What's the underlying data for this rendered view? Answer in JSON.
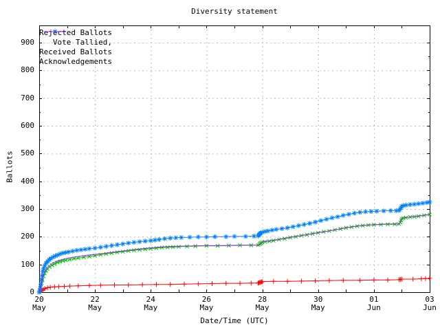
{
  "title": "Diversity statement",
  "axes": {
    "ylabel": "Ballots",
    "xlabel": "Date/Time (UTC)",
    "yticks": [
      0,
      100,
      200,
      300,
      400,
      500,
      600,
      700,
      800,
      900
    ],
    "xticks": [
      {
        "day": 0,
        "line1": "20",
        "line2": "May"
      },
      {
        "day": 2,
        "line1": "22",
        "line2": "May"
      },
      {
        "day": 4,
        "line1": "24",
        "line2": "May"
      },
      {
        "day": 6,
        "line1": "26",
        "line2": "May"
      },
      {
        "day": 8,
        "line1": "28",
        "line2": "May"
      },
      {
        "day": 10,
        "line1": "30",
        "line2": "May"
      },
      {
        "day": 12,
        "line1": "01",
        "line2": "Jun"
      },
      {
        "day": 14,
        "line1": "03",
        "line2": "Jun"
      }
    ],
    "minor_x_days": [
      1,
      3,
      5,
      7,
      9,
      11,
      13
    ],
    "minor_y_step": 50
  },
  "colors": {
    "rejected": "#ff0000",
    "tallied": "#00c000",
    "received": "#0080ff",
    "ack": "#a020f0",
    "grid": "#b8b8b8",
    "border": "#000000",
    "background": "#ffffff"
  },
  "legend": [
    {
      "label": "Rejected Ballots",
      "series": "rejected",
      "marker": "plus"
    },
    {
      "label": "Vote Tallied,",
      "series": "tallied",
      "marker": "cross"
    },
    {
      "label": "Received Ballots",
      "series": "received",
      "marker": "star"
    },
    {
      "label": "Acknowledgements",
      "series": "ack",
      "marker": "none"
    }
  ],
  "chart_data": {
    "type": "line",
    "title": "Diversity statement",
    "xlabel": "Date/Time (UTC)",
    "ylabel": "Ballots",
    "x_axis": {
      "units": "days after 20 May 00:00 UTC",
      "range": [
        0,
        14
      ],
      "tick_labels": [
        "20 May",
        "22 May",
        "24 May",
        "26 May",
        "28 May",
        "30 May",
        "01 Jun",
        "03 Jun"
      ]
    },
    "ylim": [
      0,
      962
    ],
    "ytick_max": 900,
    "grid": "dashed",
    "legend_position": "top-left",
    "series": [
      {
        "name": "Rejected Ballots",
        "color_key": "rejected",
        "marker": "plus",
        "points": [
          [
            0,
            0
          ],
          [
            0.05,
            3
          ],
          [
            0.1,
            7
          ],
          [
            0.15,
            10
          ],
          [
            0.2,
            13
          ],
          [
            0.3,
            16
          ],
          [
            0.4,
            18
          ],
          [
            0.55,
            19
          ],
          [
            0.7,
            20
          ],
          [
            0.9,
            21
          ],
          [
            1.1,
            22
          ],
          [
            1.4,
            23
          ],
          [
            1.8,
            24
          ],
          [
            2.2,
            25
          ],
          [
            2.7,
            26
          ],
          [
            3.2,
            26
          ],
          [
            3.7,
            27
          ],
          [
            4.2,
            28
          ],
          [
            4.7,
            28
          ],
          [
            5.2,
            29
          ],
          [
            5.7,
            30
          ],
          [
            6.2,
            31
          ],
          [
            6.7,
            32
          ],
          [
            7.2,
            32
          ],
          [
            7.6,
            33
          ],
          [
            7.85,
            33
          ],
          [
            7.88,
            34
          ],
          [
            7.91,
            35
          ],
          [
            7.94,
            36
          ],
          [
            7.97,
            37
          ],
          [
            8,
            38
          ],
          [
            8.4,
            39
          ],
          [
            8.9,
            39
          ],
          [
            9.4,
            40
          ],
          [
            9.9,
            41
          ],
          [
            10.4,
            42
          ],
          [
            10.9,
            43
          ],
          [
            11.5,
            43
          ],
          [
            12,
            44
          ],
          [
            12.5,
            44
          ],
          [
            12.9,
            45
          ],
          [
            12.95,
            46
          ],
          [
            13,
            47
          ],
          [
            13.4,
            47
          ],
          [
            13.7,
            48
          ],
          [
            13.85,
            49
          ],
          [
            14,
            50
          ]
        ]
      },
      {
        "name": "Vote Tallied,",
        "color_key": "tallied",
        "marker": "cross",
        "points": [
          [
            0,
            0
          ],
          [
            0.03,
            6
          ],
          [
            0.06,
            18
          ],
          [
            0.09,
            32
          ],
          [
            0.12,
            45
          ],
          [
            0.16,
            58
          ],
          [
            0.2,
            68
          ],
          [
            0.25,
            77
          ],
          [
            0.3,
            84
          ],
          [
            0.38,
            91
          ],
          [
            0.46,
            97
          ],
          [
            0.55,
            102
          ],
          [
            0.65,
            107
          ],
          [
            0.75,
            110
          ],
          [
            0.85,
            113
          ],
          [
            0.95,
            115
          ],
          [
            1.1,
            118
          ],
          [
            1.25,
            121
          ],
          [
            1.4,
            123
          ],
          [
            1.6,
            126
          ],
          [
            1.8,
            129
          ],
          [
            2,
            132
          ],
          [
            2.2,
            135
          ],
          [
            2.4,
            138
          ],
          [
            2.6,
            141
          ],
          [
            2.8,
            144
          ],
          [
            3,
            146
          ],
          [
            3.2,
            149
          ],
          [
            3.4,
            151
          ],
          [
            3.6,
            153
          ],
          [
            3.8,
            155
          ],
          [
            4,
            157
          ],
          [
            4.2,
            159
          ],
          [
            4.4,
            161
          ],
          [
            4.6,
            162
          ],
          [
            4.8,
            163
          ],
          [
            5,
            164
          ],
          [
            5.3,
            165
          ],
          [
            5.6,
            166
          ],
          [
            6,
            167
          ],
          [
            6.4,
            167
          ],
          [
            6.8,
            168
          ],
          [
            7.2,
            169
          ],
          [
            7.6,
            169
          ],
          [
            7.85,
            170
          ],
          [
            7.9,
            173
          ],
          [
            7.93,
            176
          ],
          [
            7.96,
            178
          ],
          [
            8,
            180
          ],
          [
            8.1,
            182
          ],
          [
            8.25,
            184
          ],
          [
            8.4,
            186
          ],
          [
            8.6,
            190
          ],
          [
            8.8,
            193
          ],
          [
            9,
            197
          ],
          [
            9.2,
            200
          ],
          [
            9.4,
            204
          ],
          [
            9.6,
            207
          ],
          [
            9.8,
            211
          ],
          [
            10,
            214
          ],
          [
            10.2,
            218
          ],
          [
            10.4,
            221
          ],
          [
            10.6,
            225
          ],
          [
            10.8,
            228
          ],
          [
            11,
            232
          ],
          [
            11.2,
            235
          ],
          [
            11.4,
            238
          ],
          [
            11.6,
            240
          ],
          [
            11.8,
            242
          ],
          [
            12,
            243
          ],
          [
            12.25,
            244
          ],
          [
            12.5,
            245
          ],
          [
            12.75,
            245
          ],
          [
            12.9,
            246
          ],
          [
            12.95,
            252
          ],
          [
            12.98,
            259
          ],
          [
            13,
            265
          ],
          [
            13.05,
            267
          ],
          [
            13.15,
            269
          ],
          [
            13.3,
            271
          ],
          [
            13.45,
            272
          ],
          [
            13.6,
            274
          ],
          [
            13.8,
            277
          ],
          [
            14,
            280
          ]
        ]
      },
      {
        "name": "Received Ballots",
        "color_key": "received",
        "marker": "star",
        "points": [
          [
            0,
            0
          ],
          [
            0.02,
            5
          ],
          [
            0.04,
            15
          ],
          [
            0.06,
            28
          ],
          [
            0.08,
            45
          ],
          [
            0.1,
            60
          ],
          [
            0.13,
            75
          ],
          [
            0.16,
            86
          ],
          [
            0.2,
            96
          ],
          [
            0.25,
            105
          ],
          [
            0.3,
            111
          ],
          [
            0.36,
            117
          ],
          [
            0.42,
            122
          ],
          [
            0.5,
            127
          ],
          [
            0.58,
            131
          ],
          [
            0.66,
            134
          ],
          [
            0.75,
            138
          ],
          [
            0.85,
            141
          ],
          [
            0.95,
            143
          ],
          [
            1.05,
            145
          ],
          [
            1.2,
            148
          ],
          [
            1.35,
            151
          ],
          [
            1.5,
            153
          ],
          [
            1.65,
            155
          ],
          [
            1.8,
            157
          ],
          [
            2,
            159
          ],
          [
            2.2,
            162
          ],
          [
            2.4,
            165
          ],
          [
            2.6,
            168
          ],
          [
            2.8,
            171
          ],
          [
            3,
            174
          ],
          [
            3.2,
            177
          ],
          [
            3.4,
            180
          ],
          [
            3.6,
            182
          ],
          [
            3.8,
            184
          ],
          [
            4,
            186
          ],
          [
            4.15,
            188
          ],
          [
            4.3,
            190
          ],
          [
            4.5,
            193
          ],
          [
            4.7,
            195
          ],
          [
            4.9,
            196
          ],
          [
            5.1,
            197
          ],
          [
            5.4,
            198
          ],
          [
            5.7,
            199
          ],
          [
            6,
            199
          ],
          [
            6.3,
            200
          ],
          [
            6.7,
            200
          ],
          [
            7,
            201
          ],
          [
            7.4,
            201
          ],
          [
            7.7,
            202
          ],
          [
            7.85,
            203
          ],
          [
            7.88,
            206
          ],
          [
            7.9,
            209
          ],
          [
            7.92,
            212
          ],
          [
            7.95,
            214
          ],
          [
            8,
            216
          ],
          [
            8.1,
            219
          ],
          [
            8.2,
            221
          ],
          [
            8.35,
            224
          ],
          [
            8.5,
            226
          ],
          [
            8.7,
            229
          ],
          [
            8.9,
            232
          ],
          [
            9.1,
            236
          ],
          [
            9.3,
            240
          ],
          [
            9.5,
            244
          ],
          [
            9.7,
            248
          ],
          [
            9.9,
            253
          ],
          [
            10.1,
            258
          ],
          [
            10.3,
            263
          ],
          [
            10.5,
            268
          ],
          [
            10.7,
            272
          ],
          [
            10.9,
            277
          ],
          [
            11.1,
            281
          ],
          [
            11.3,
            285
          ],
          [
            11.5,
            288
          ],
          [
            11.7,
            290
          ],
          [
            11.9,
            291
          ],
          [
            12.1,
            292
          ],
          [
            12.35,
            293
          ],
          [
            12.6,
            294
          ],
          [
            12.8,
            294
          ],
          [
            12.9,
            295
          ],
          [
            12.94,
            299
          ],
          [
            12.97,
            304
          ],
          [
            13,
            310
          ],
          [
            13.05,
            312
          ],
          [
            13.15,
            314
          ],
          [
            13.3,
            316
          ],
          [
            13.45,
            317
          ],
          [
            13.6,
            319
          ],
          [
            13.75,
            321
          ],
          [
            13.9,
            323
          ],
          [
            14,
            325
          ]
        ]
      },
      {
        "name": "Acknowledgements",
        "color_key": "ack",
        "marker": "none",
        "points": [
          [
            0,
            0
          ],
          [
            0.05,
            15
          ],
          [
            0.1,
            40
          ],
          [
            0.15,
            62
          ],
          [
            0.2,
            76
          ],
          [
            0.3,
            90
          ],
          [
            0.4,
            99
          ],
          [
            0.5,
            106
          ],
          [
            0.7,
            114
          ],
          [
            0.9,
            120
          ],
          [
            1.1,
            124
          ],
          [
            1.4,
            129
          ],
          [
            1.7,
            133
          ],
          [
            2,
            136
          ],
          [
            2.4,
            141
          ],
          [
            2.8,
            146
          ],
          [
            3.2,
            151
          ],
          [
            3.6,
            156
          ],
          [
            4,
            160
          ],
          [
            4.4,
            163
          ],
          [
            4.8,
            165
          ],
          [
            5.2,
            166
          ],
          [
            5.6,
            167
          ],
          [
            6,
            168
          ],
          [
            6.5,
            168
          ],
          [
            7,
            169
          ],
          [
            7.5,
            170
          ],
          [
            7.9,
            170
          ],
          [
            7.95,
            176
          ],
          [
            8,
            181
          ],
          [
            8.2,
            184
          ],
          [
            8.5,
            189
          ],
          [
            9,
            198
          ],
          [
            9.5,
            206
          ],
          [
            10,
            215
          ],
          [
            10.5,
            223
          ],
          [
            11,
            233
          ],
          [
            11.5,
            240
          ],
          [
            12,
            244
          ],
          [
            12.5,
            246
          ],
          [
            12.9,
            246
          ],
          [
            12.97,
            258
          ],
          [
            13,
            267
          ],
          [
            13.3,
            271
          ],
          [
            13.6,
            275
          ],
          [
            14,
            281
          ]
        ]
      }
    ]
  }
}
